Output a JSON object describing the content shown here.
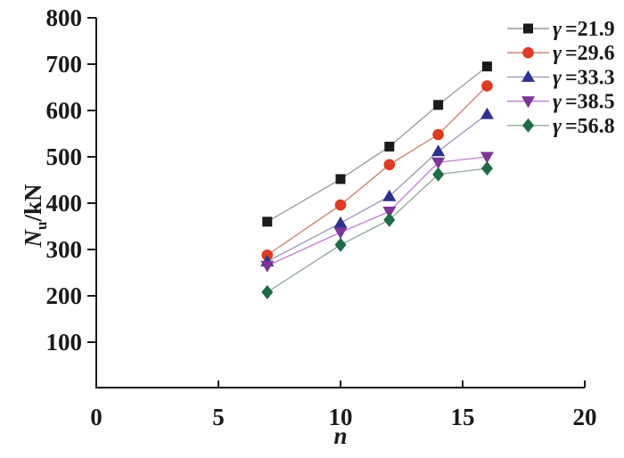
{
  "page": {
    "background": "#ffffff",
    "axis_color": "#1a1a1a"
  },
  "chart_data": {
    "type": "line",
    "title": "",
    "xlabel": "n",
    "ylabel": "Nu/kN",
    "ylabel_parts": {
      "main": "N",
      "sub": "u",
      "rest": "/kN"
    },
    "x": [
      7,
      10,
      12,
      14,
      16
    ],
    "xlim": [
      0,
      20
    ],
    "ylim": [
      0,
      800
    ],
    "xticks": [
      0,
      5,
      10,
      15,
      20
    ],
    "yticks": [
      100,
      200,
      300,
      400,
      500,
      600,
      700,
      800
    ],
    "grid": false,
    "legend_position": "top-right",
    "series": [
      {
        "name": "γ =21.9",
        "symbol": "γ",
        "value_label": "=21.9",
        "marker": "square",
        "marker_color": "#1a1a1a",
        "line_color": "#9a9a9a",
        "values": [
          360,
          452,
          522,
          612,
          695
        ]
      },
      {
        "name": "γ =29.6",
        "symbol": "γ",
        "value_label": "=29.6",
        "marker": "circle",
        "marker_color": "#e03a21",
        "line_color": "#c4826e",
        "values": [
          288,
          396,
          483,
          548,
          653
        ]
      },
      {
        "name": "γ =33.3",
        "symbol": "γ",
        "value_label": "=33.3",
        "marker": "triangle-up",
        "marker_color": "#2d3192",
        "line_color": "#9699ba",
        "values": [
          274,
          357,
          415,
          512,
          592
        ]
      },
      {
        "name": "γ =38.5",
        "symbol": "γ",
        "value_label": "=38.5",
        "marker": "triangle-down",
        "marker_color": "#7d3597",
        "line_color": "#c07bce",
        "values": [
          265,
          337,
          382,
          488,
          500
        ]
      },
      {
        "name": "γ =56.8",
        "symbol": "γ",
        "value_label": "=56.8",
        "marker": "diamond",
        "marker_color": "#206b47",
        "line_color": "#93a893",
        "values": [
          208,
          310,
          364,
          462,
          475
        ]
      }
    ]
  }
}
